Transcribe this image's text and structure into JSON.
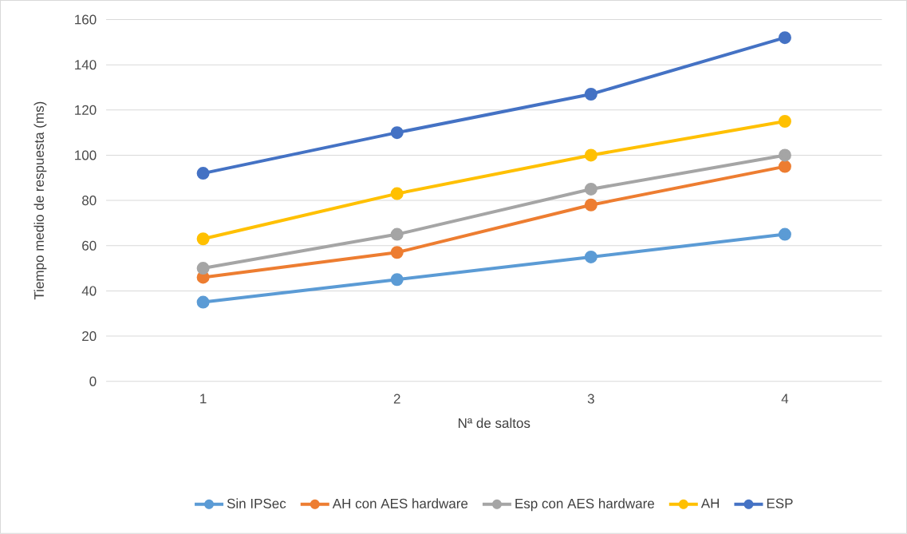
{
  "chart_data": {
    "type": "line",
    "xlabel": "Nª de saltos",
    "ylabel": "Tiempo medio de respuesta (ms)",
    "categories": [
      "1",
      "2",
      "3",
      "4"
    ],
    "series": [
      {
        "name": "Sin IPSec",
        "color": "#5b9bd5",
        "values": [
          35,
          45,
          55,
          65
        ]
      },
      {
        "name": "AH con AES hardware",
        "color": "#ed7d31",
        "values": [
          46,
          57,
          78,
          95
        ]
      },
      {
        "name": "Esp con AES hardware",
        "color": "#a5a5a5",
        "values": [
          50,
          65,
          85,
          100
        ]
      },
      {
        "name": "AH",
        "color": "#ffc000",
        "values": [
          63,
          83,
          100,
          115
        ]
      },
      {
        "name": "ESP",
        "color": "#4472c4",
        "values": [
          92,
          110,
          127,
          152
        ]
      }
    ],
    "ylim": [
      0,
      160
    ],
    "yticks": [
      0,
      20,
      40,
      60,
      80,
      100,
      120,
      140,
      160
    ],
    "grid": "y",
    "legend": "bottom",
    "marker": "circle",
    "line_style": "solid"
  }
}
